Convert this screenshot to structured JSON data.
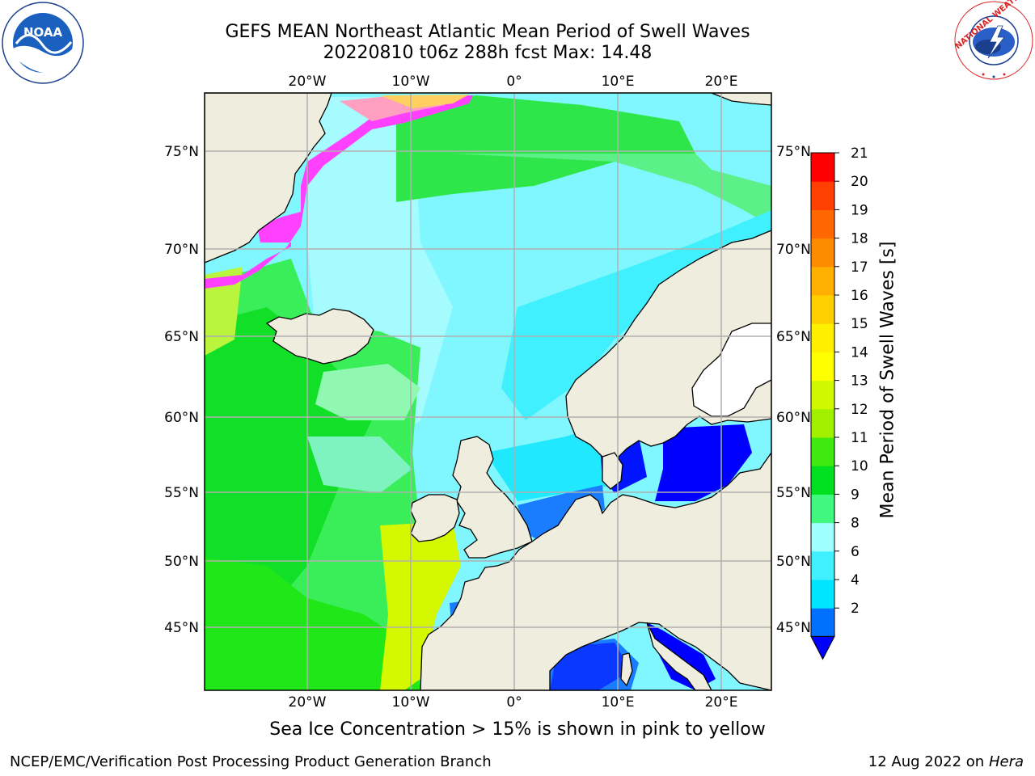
{
  "title": {
    "line1": "GEFS MEAN Northeast Atlantic Mean Period of Swell Waves",
    "line2": "20220810 t06z 288h fcst   Max: 14.48"
  },
  "map": {
    "lon_ticks_top": [
      "20°W",
      "10°W",
      "0°",
      "10°E",
      "20°E"
    ],
    "lon_ticks_bottom": [
      "20°W",
      "10°W",
      "0°",
      "10°E",
      "20°E"
    ],
    "lat_ticks_left": [
      "75°N",
      "70°N",
      "65°N",
      "60°N",
      "55°N",
      "50°N",
      "45°N"
    ],
    "lat_ticks_right": [
      "75°N",
      "70°N",
      "65°N",
      "60°N",
      "55°N",
      "50°N",
      "45°N"
    ],
    "land_color": "#efedde",
    "ice_colors": [
      "#ff40ff",
      "#ffa0c0",
      "#ffd060"
    ]
  },
  "colorbar": {
    "label": "Mean Period of Swell Waves [s]",
    "ticks": [
      "21",
      "20",
      "19",
      "18",
      "17",
      "16",
      "15",
      "14",
      "13",
      "12",
      "11",
      "10",
      "9",
      "8",
      "6",
      "4",
      "2"
    ],
    "colors_bottom_to_top": [
      "#0070ff",
      "#00e5ff",
      "#40f0ff",
      "#a0ffff",
      "#40f880",
      "#00e020",
      "#40ea10",
      "#a0f000",
      "#d0f800",
      "#ffff00",
      "#fff000",
      "#ffd000",
      "#ffb000",
      "#ff8c00",
      "#ff6800",
      "#ff4000",
      "#ff0000"
    ],
    "extend_color": "#0000ff"
  },
  "footer": {
    "ice_note": "Sea Ice Concentration > 15% is shown in pink to yellow",
    "credit": "NCEP/EMC/Verification Post Processing Product Generation Branch",
    "date": "12 Aug 2022 on",
    "machine": "Hera"
  },
  "logos": {
    "noaa_text": "NOAA",
    "nws_text": "NATIONAL WEATHER SERVICE"
  }
}
